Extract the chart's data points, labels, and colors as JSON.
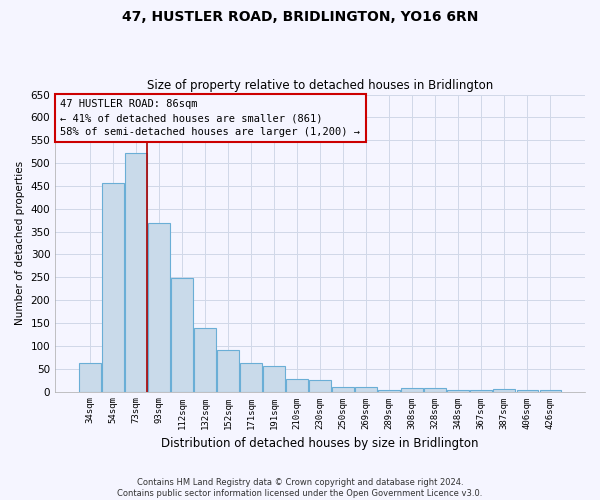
{
  "title": "47, HUSTLER ROAD, BRIDLINGTON, YO16 6RN",
  "subtitle": "Size of property relative to detached houses in Bridlington",
  "xlabel": "Distribution of detached houses by size in Bridlington",
  "ylabel": "Number of detached properties",
  "categories": [
    "34sqm",
    "54sqm",
    "73sqm",
    "93sqm",
    "112sqm",
    "132sqm",
    "152sqm",
    "171sqm",
    "191sqm",
    "210sqm",
    "230sqm",
    "250sqm",
    "269sqm",
    "289sqm",
    "308sqm",
    "328sqm",
    "348sqm",
    "367sqm",
    "387sqm",
    "406sqm",
    "426sqm"
  ],
  "values": [
    62,
    456,
    521,
    368,
    248,
    139,
    91,
    62,
    55,
    27,
    26,
    11,
    11,
    4,
    7,
    7,
    4,
    4,
    5,
    3,
    3
  ],
  "bar_color": "#c9daea",
  "bar_edge_color": "#6aaed6",
  "grid_color": "#d0d8e8",
  "marker_line_color": "#aa0000",
  "annotation_text": "47 HUSTLER ROAD: 86sqm\n← 41% of detached houses are smaller (861)\n58% of semi-detached houses are larger (1,200) →",
  "annotation_box_color": "#cc0000",
  "ylim": [
    0,
    650
  ],
  "yticks": [
    0,
    50,
    100,
    150,
    200,
    250,
    300,
    350,
    400,
    450,
    500,
    550,
    600,
    650
  ],
  "footer_line1": "Contains HM Land Registry data © Crown copyright and database right 2024.",
  "footer_line2": "Contains public sector information licensed under the Open Government Licence v3.0.",
  "bg_color": "#f5f5ff"
}
